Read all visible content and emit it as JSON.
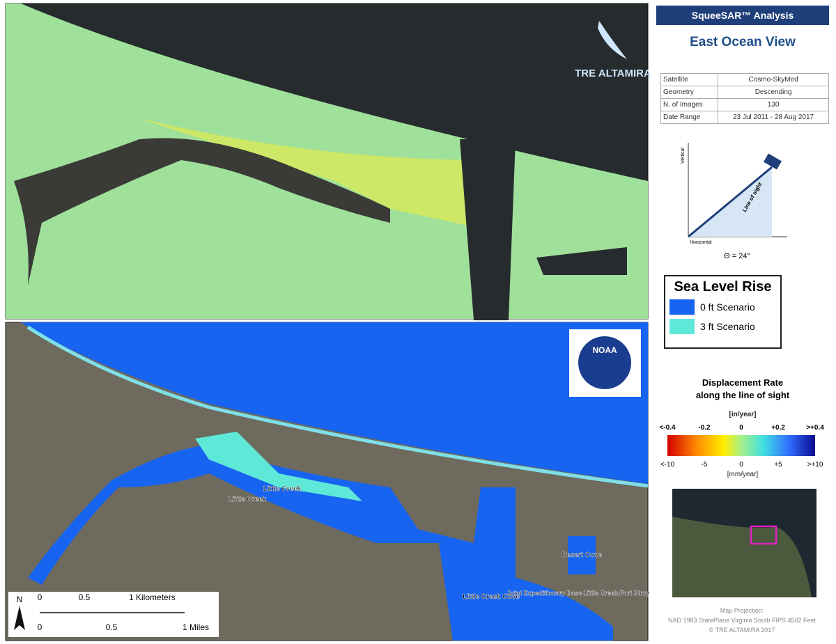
{
  "header": {
    "title": "SqueeSAR™ Analysis",
    "site": "East Ocean View"
  },
  "info_table": {
    "rows": [
      [
        "Satellite",
        "Cosmo-SkyMed"
      ],
      [
        "Geometry",
        "Descending"
      ],
      [
        "N. of Images",
        "130"
      ],
      [
        "Date Range",
        "23 Jul 2011 - 28 Aug 2017"
      ]
    ]
  },
  "geometry_diagram": {
    "vertical": "Vertical",
    "horizontal": "Horizontal",
    "line_of_sight": "Line of sight",
    "angle": "Θ = 24°"
  },
  "logos": {
    "top": "TRE ALTAMIRA",
    "bottom": "NOAA"
  },
  "sea_level_legend": {
    "title": "Sea Level Rise",
    "items": [
      "0 ft Scenario",
      "3 ft Scenario"
    ]
  },
  "displacement_legend": {
    "title_line1": "Displacement Rate",
    "title_line2": "along the line of sight",
    "unit_top": "[in/year]",
    "ticks_top": [
      "<-0.4",
      "-0.2",
      "0",
      "+0.2",
      ">+0.4"
    ],
    "ticks_bottom": [
      "<-10",
      "-5",
      "0",
      "+5",
      ">+10"
    ],
    "unit_bottom": "[mm/year]"
  },
  "map_labels": [
    "Little Creek",
    "Little Creek",
    "Little Creek Cove",
    "Desert Cove",
    "Joint Expeditionary Base Little Creek-Fort Story"
  ],
  "scale_bar": {
    "north": "N",
    "km_ticks": [
      "0",
      "0.5",
      "1 Kilometers"
    ],
    "mi_ticks": [
      "0",
      "0.5",
      "1 Miles"
    ]
  },
  "footer": {
    "line1": "Map Projection:",
    "line2": "NAD 1983 StatePlane Virginia South FIPS 4502 Feet",
    "line3": "© TRE ALTAMIRA 2017"
  }
}
